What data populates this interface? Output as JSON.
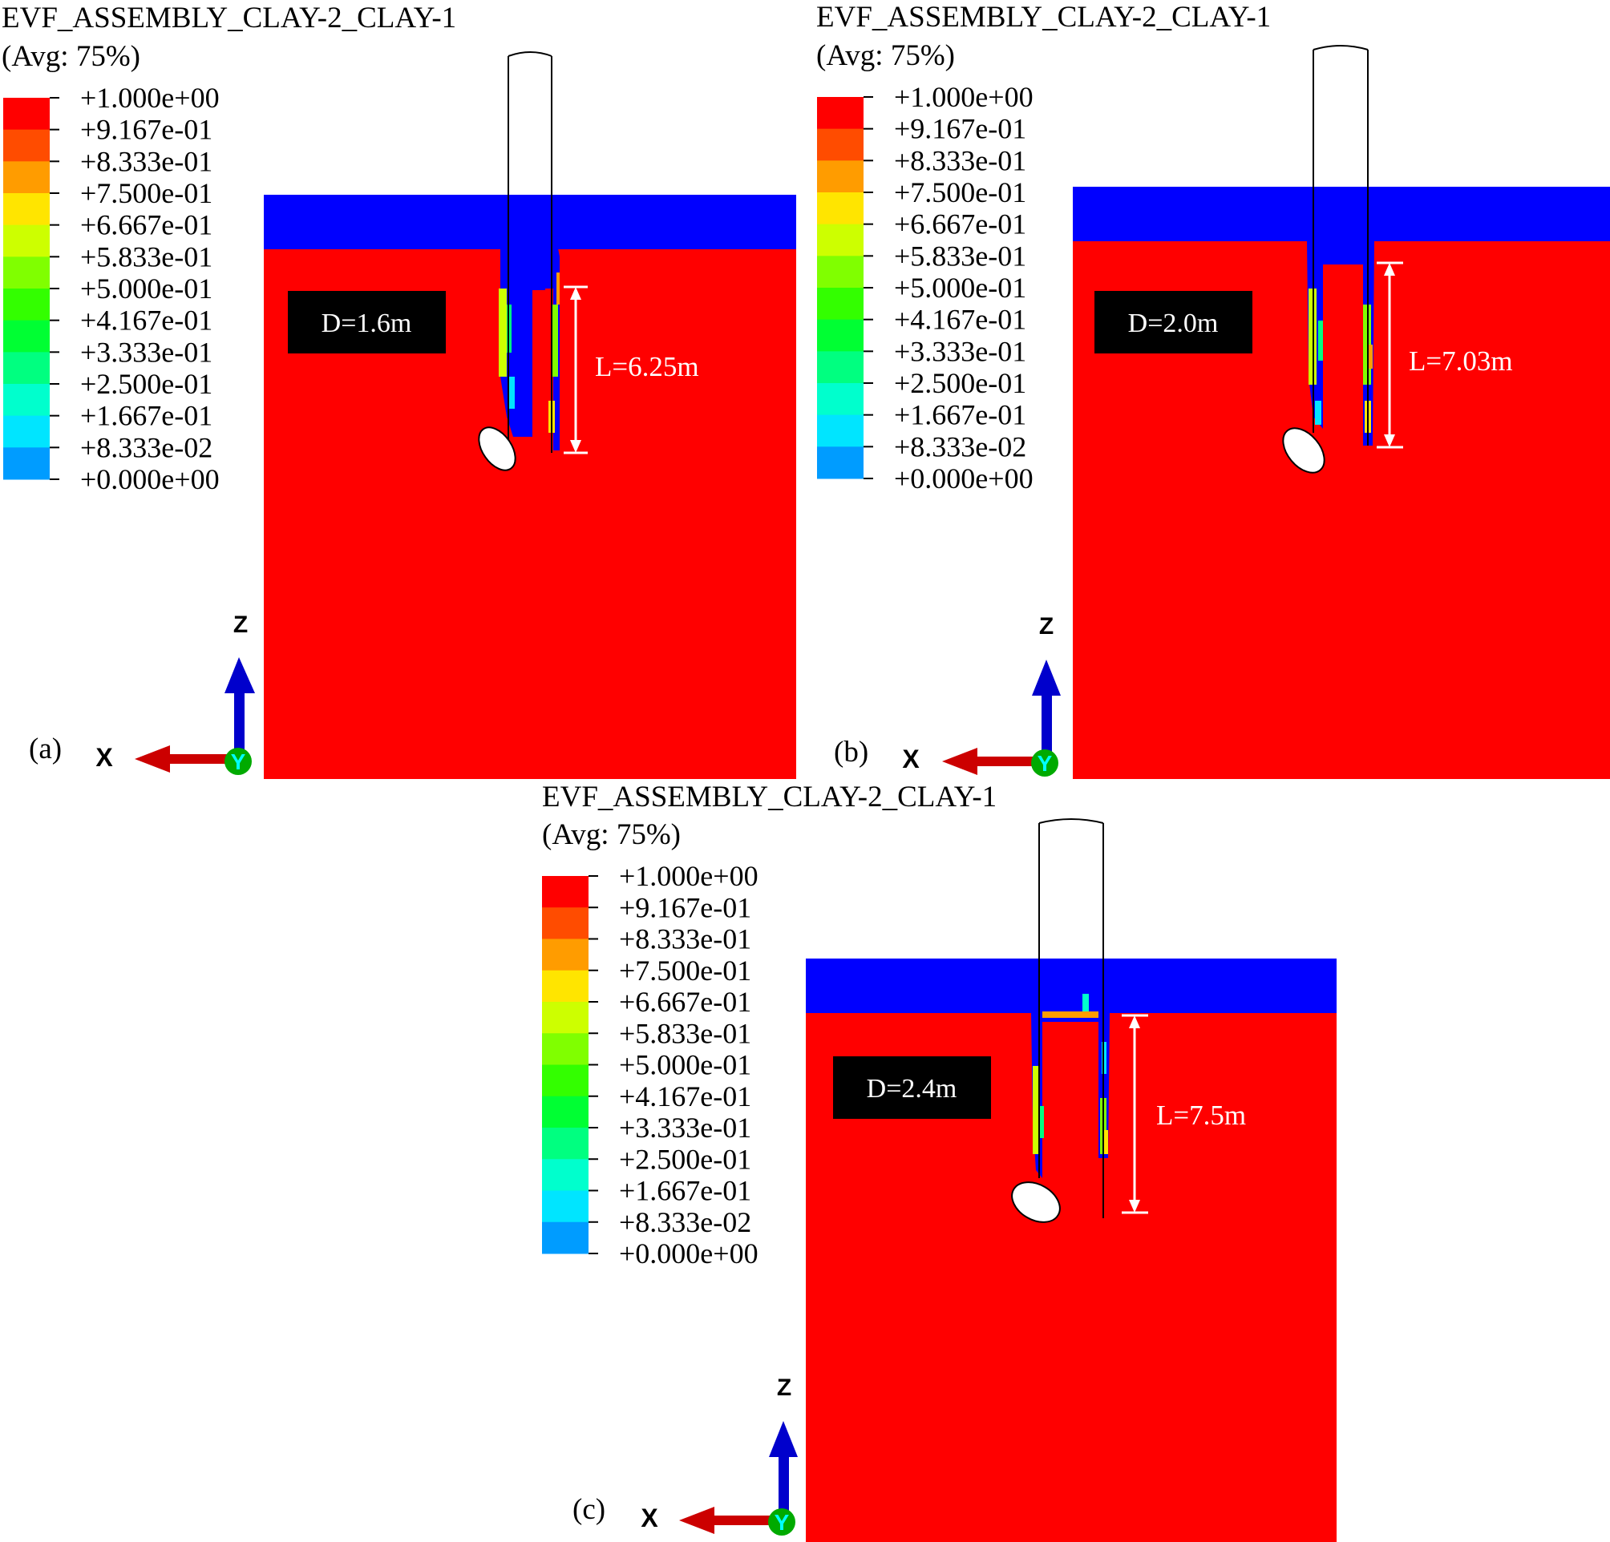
{
  "legend_scale": {
    "colors": [
      "#ff0000",
      "#ff4c00",
      "#ff9c00",
      "#ffe500",
      "#cdff00",
      "#80ff00",
      "#33ff00",
      "#00ff33",
      "#00ff80",
      "#00ffcd",
      "#00e5ff",
      "#009cff",
      "#0000ff"
    ],
    "tick_labels": [
      "+1.000e+00",
      "+9.167e-01",
      "+8.333e-01",
      "+7.500e-01",
      "+6.667e-01",
      "+5.833e-01",
      "+5.000e-01",
      "+4.167e-01",
      "+3.333e-01",
      "+2.500e-01",
      "+1.667e-01",
      "+8.333e-02",
      "+0.000e+00"
    ]
  },
  "colors": {
    "soil": "#ff0000",
    "void_layer": "#0000ff",
    "label_box": "#000000",
    "label_text": "#ffffff",
    "axis_z": "#0000cc",
    "axis_x": "#cc0000",
    "axis_y": "#00aa00"
  },
  "panels": [
    {
      "id": "a",
      "legend_title": "EVF_ASSEMBLY_CLAY-2_CLAY-1",
      "legend_subtitle": "(Avg: 75%)",
      "diameter_label": "D=1.6m",
      "length_label": "L=6.25m",
      "panel_label": "(a)",
      "axis_labels": {
        "x": "X",
        "y": "Y",
        "z": "Z"
      }
    },
    {
      "id": "b",
      "legend_title": "EVF_ASSEMBLY_CLAY-2_CLAY-1",
      "legend_subtitle": "(Avg: 75%)",
      "diameter_label": "D=2.0m",
      "length_label": "L=7.03m",
      "panel_label": "(b)",
      "axis_labels": {
        "x": "X",
        "y": "Y",
        "z": "Z"
      }
    },
    {
      "id": "c",
      "legend_title": "EVF_ASSEMBLY_CLAY-2_CLAY-1",
      "legend_subtitle": "(Avg: 75%)",
      "diameter_label": "D=2.4m",
      "length_label": "L=7.5m",
      "panel_label": "(c)",
      "axis_labels": {
        "x": "X",
        "y": "Y",
        "z": "Z"
      }
    }
  ]
}
